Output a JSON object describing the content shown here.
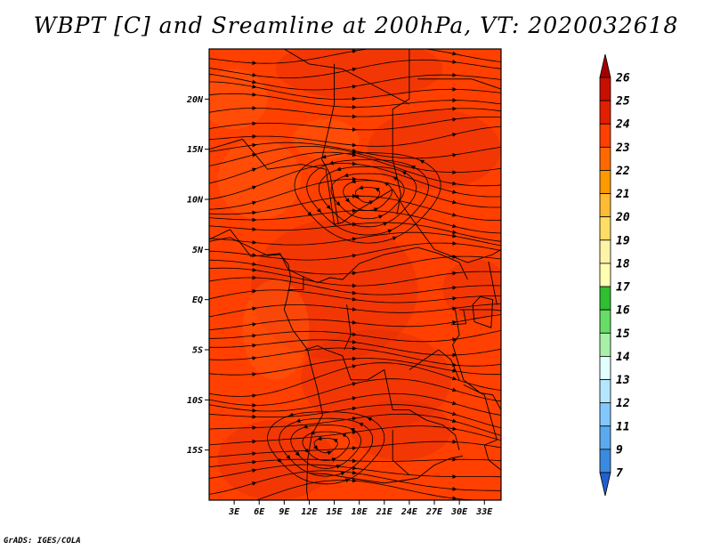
{
  "title": "WBPT [C] and Sreamline at 200hPa, VT: 2020032618",
  "credit": "GrADS: IGES/COLA",
  "map": {
    "lon_range": [
      0,
      35
    ],
    "lat_range": [
      -20,
      25
    ],
    "y_ticks": [
      {
        "value": 20,
        "label": "20N"
      },
      {
        "value": 15,
        "label": "15N"
      },
      {
        "value": 10,
        "label": "10N"
      },
      {
        "value": 5,
        "label": "5N"
      },
      {
        "value": 0,
        "label": "EQ"
      },
      {
        "value": -5,
        "label": "5S"
      },
      {
        "value": -10,
        "label": "10S"
      },
      {
        "value": -15,
        "label": "15S"
      }
    ],
    "x_ticks": [
      {
        "value": 3,
        "label": "3E"
      },
      {
        "value": 6,
        "label": "6E"
      },
      {
        "value": 9,
        "label": "9E"
      },
      {
        "value": 12,
        "label": "12E"
      },
      {
        "value": 15,
        "label": "15E"
      },
      {
        "value": 18,
        "label": "18E"
      },
      {
        "value": 21,
        "label": "21E"
      },
      {
        "value": 24,
        "label": "24E"
      },
      {
        "value": 27,
        "label": "27E"
      },
      {
        "value": 30,
        "label": "30E"
      },
      {
        "value": 33,
        "label": "33E"
      }
    ],
    "field_colors": {
      "base": "#ff4000",
      "darker": "#e83008",
      "lighter": "#ff5c10"
    }
  },
  "colorbar": {
    "labels": [
      "26",
      "25",
      "24",
      "23",
      "22",
      "21",
      "20",
      "19",
      "18",
      "17",
      "16",
      "15",
      "14",
      "13",
      "12",
      "11",
      "9",
      "7"
    ],
    "colors": [
      "#a50000",
      "#c81000",
      "#e02000",
      "#ff4000",
      "#ff6a00",
      "#ff9900",
      "#ffbb33",
      "#ffdd66",
      "#fff3a6",
      "#ffffb4",
      "#2fbf2f",
      "#66dd66",
      "#a8f0a8",
      "#e2ffff",
      "#b4e6ff",
      "#82c8ff",
      "#5aaaf0",
      "#3a8ae0",
      "#2060d0"
    ]
  }
}
